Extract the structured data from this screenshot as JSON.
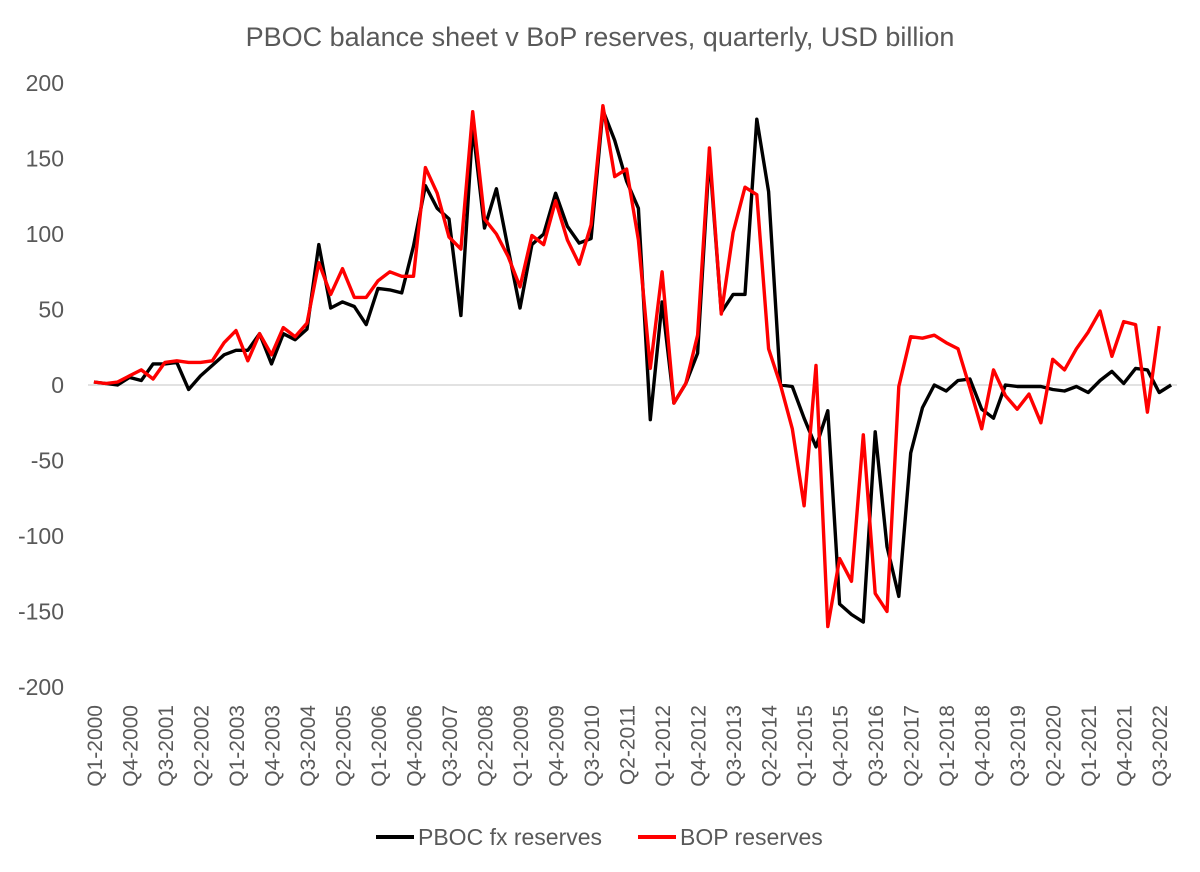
{
  "chart_data": {
    "type": "line",
    "title": "PBOC balance sheet v BoP reserves, quarterly, USD billion",
    "xlabel": "",
    "ylabel": "",
    "ylim": [
      -200,
      200
    ],
    "yticks": [
      200,
      150,
      100,
      50,
      0,
      -50,
      -100,
      -150,
      -200
    ],
    "x_tick_labels": [
      "Q1-2000",
      "Q4-2000",
      "Q3-2001",
      "Q2-2002",
      "Q1-2003",
      "Q4-2003",
      "Q3-2004",
      "Q2-2005",
      "Q1-2006",
      "Q4-2006",
      "Q3-2007",
      "Q2-2008",
      "Q1-2009",
      "Q4-2009",
      "Q3-2010",
      "Q2-2011",
      "Q1-2012",
      "Q4-2012",
      "Q3-2013",
      "Q2-2014",
      "Q1-2015",
      "Q4-2015",
      "Q3-2016",
      "Q2-2017",
      "Q1-2018",
      "Q4-2018",
      "Q3-2019",
      "Q2-2020",
      "Q1-2021",
      "Q4-2021",
      "Q3-2022"
    ],
    "x_start": "Q1-2000",
    "legend_position": "bottom",
    "grid": false,
    "series": [
      {
        "name": "PBOC fx reserves",
        "color": "#000000",
        "values": [
          2,
          1,
          0,
          5,
          3,
          14,
          14,
          15,
          -3,
          6,
          13,
          20,
          23,
          23,
          34,
          14,
          34,
          30,
          37,
          93,
          51,
          55,
          52,
          40,
          64,
          63,
          61,
          92,
          132,
          117,
          110,
          46,
          171,
          104,
          130,
          90,
          51,
          93,
          100,
          127,
          105,
          94,
          97,
          182,
          162,
          135,
          117,
          -23,
          55,
          -12,
          1,
          21,
          152,
          48,
          60,
          60,
          176,
          128,
          0,
          -1,
          -22,
          -41,
          -17,
          -145,
          -152,
          -157,
          -31,
          -107,
          -140,
          -45,
          -15,
          0,
          -4,
          3,
          4,
          -16,
          -22,
          0,
          -1,
          -1,
          -1,
          -3,
          -4,
          -1,
          -5,
          3,
          9,
          1,
          11,
          10,
          -5,
          0
        ]
      },
      {
        "name": "BOP reserves",
        "color": "#ff0000",
        "values": [
          2,
          1,
          2,
          6,
          10,
          4,
          15,
          16,
          15,
          15,
          16,
          28,
          36,
          16,
          34,
          20,
          38,
          32,
          41,
          81,
          60,
          77,
          58,
          58,
          69,
          75,
          72,
          72,
          144,
          127,
          98,
          90,
          181,
          110,
          100,
          85,
          65,
          99,
          93,
          122,
          96,
          80,
          106,
          185,
          138,
          143,
          96,
          11,
          75,
          -12,
          1,
          33,
          157,
          47,
          101,
          131,
          126,
          24,
          0,
          -29,
          -80,
          13,
          -160,
          -115,
          -130,
          -33,
          -138,
          -150,
          -1,
          32,
          31,
          33,
          28,
          24,
          -2,
          -29,
          10,
          -7,
          -16,
          -6,
          -25,
          17,
          10,
          24,
          35,
          49,
          19,
          42,
          40,
          -18,
          39
        ]
      }
    ]
  }
}
